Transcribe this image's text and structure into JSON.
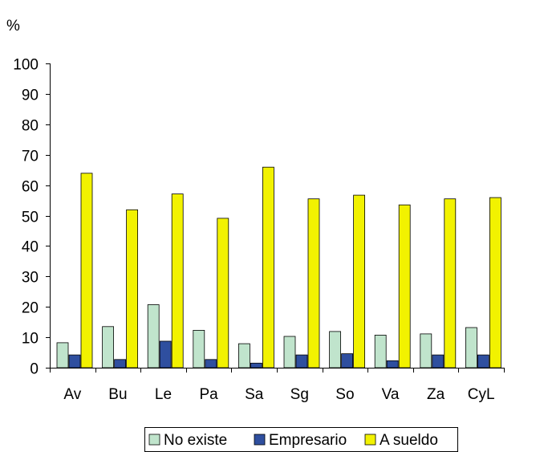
{
  "chart_data": {
    "type": "bar",
    "ylabel": "%",
    "ylim": [
      0,
      100
    ],
    "yticks": [
      "0",
      "10",
      "20",
      "30",
      "40",
      "50",
      "60",
      "70",
      "80",
      "90",
      "100"
    ],
    "categories": [
      "Av",
      "Bu",
      "Le",
      "Pa",
      "Sa",
      "Sg",
      "So",
      "Va",
      "Za",
      "CyL"
    ],
    "series": [
      {
        "name": "No existe",
        "color": "#c0e4cc",
        "values": [
          8.2,
          13.5,
          20.7,
          12.3,
          7.9,
          10.3,
          11.9,
          10.7,
          11.1,
          13.2
        ]
      },
      {
        "name": "Empresario",
        "color": "#2f4f9f",
        "values": [
          4.2,
          2.7,
          8.7,
          2.7,
          1.5,
          4.2,
          4.6,
          2.3,
          4.2,
          4.2
        ]
      },
      {
        "name": "A sueldo",
        "color": "#f2f200",
        "values": [
          63.9,
          51.9,
          57.1,
          49.1,
          65.9,
          55.5,
          56.7,
          53.5,
          55.5,
          55.9
        ]
      }
    ],
    "legend_position": "bottom",
    "grid": false
  }
}
